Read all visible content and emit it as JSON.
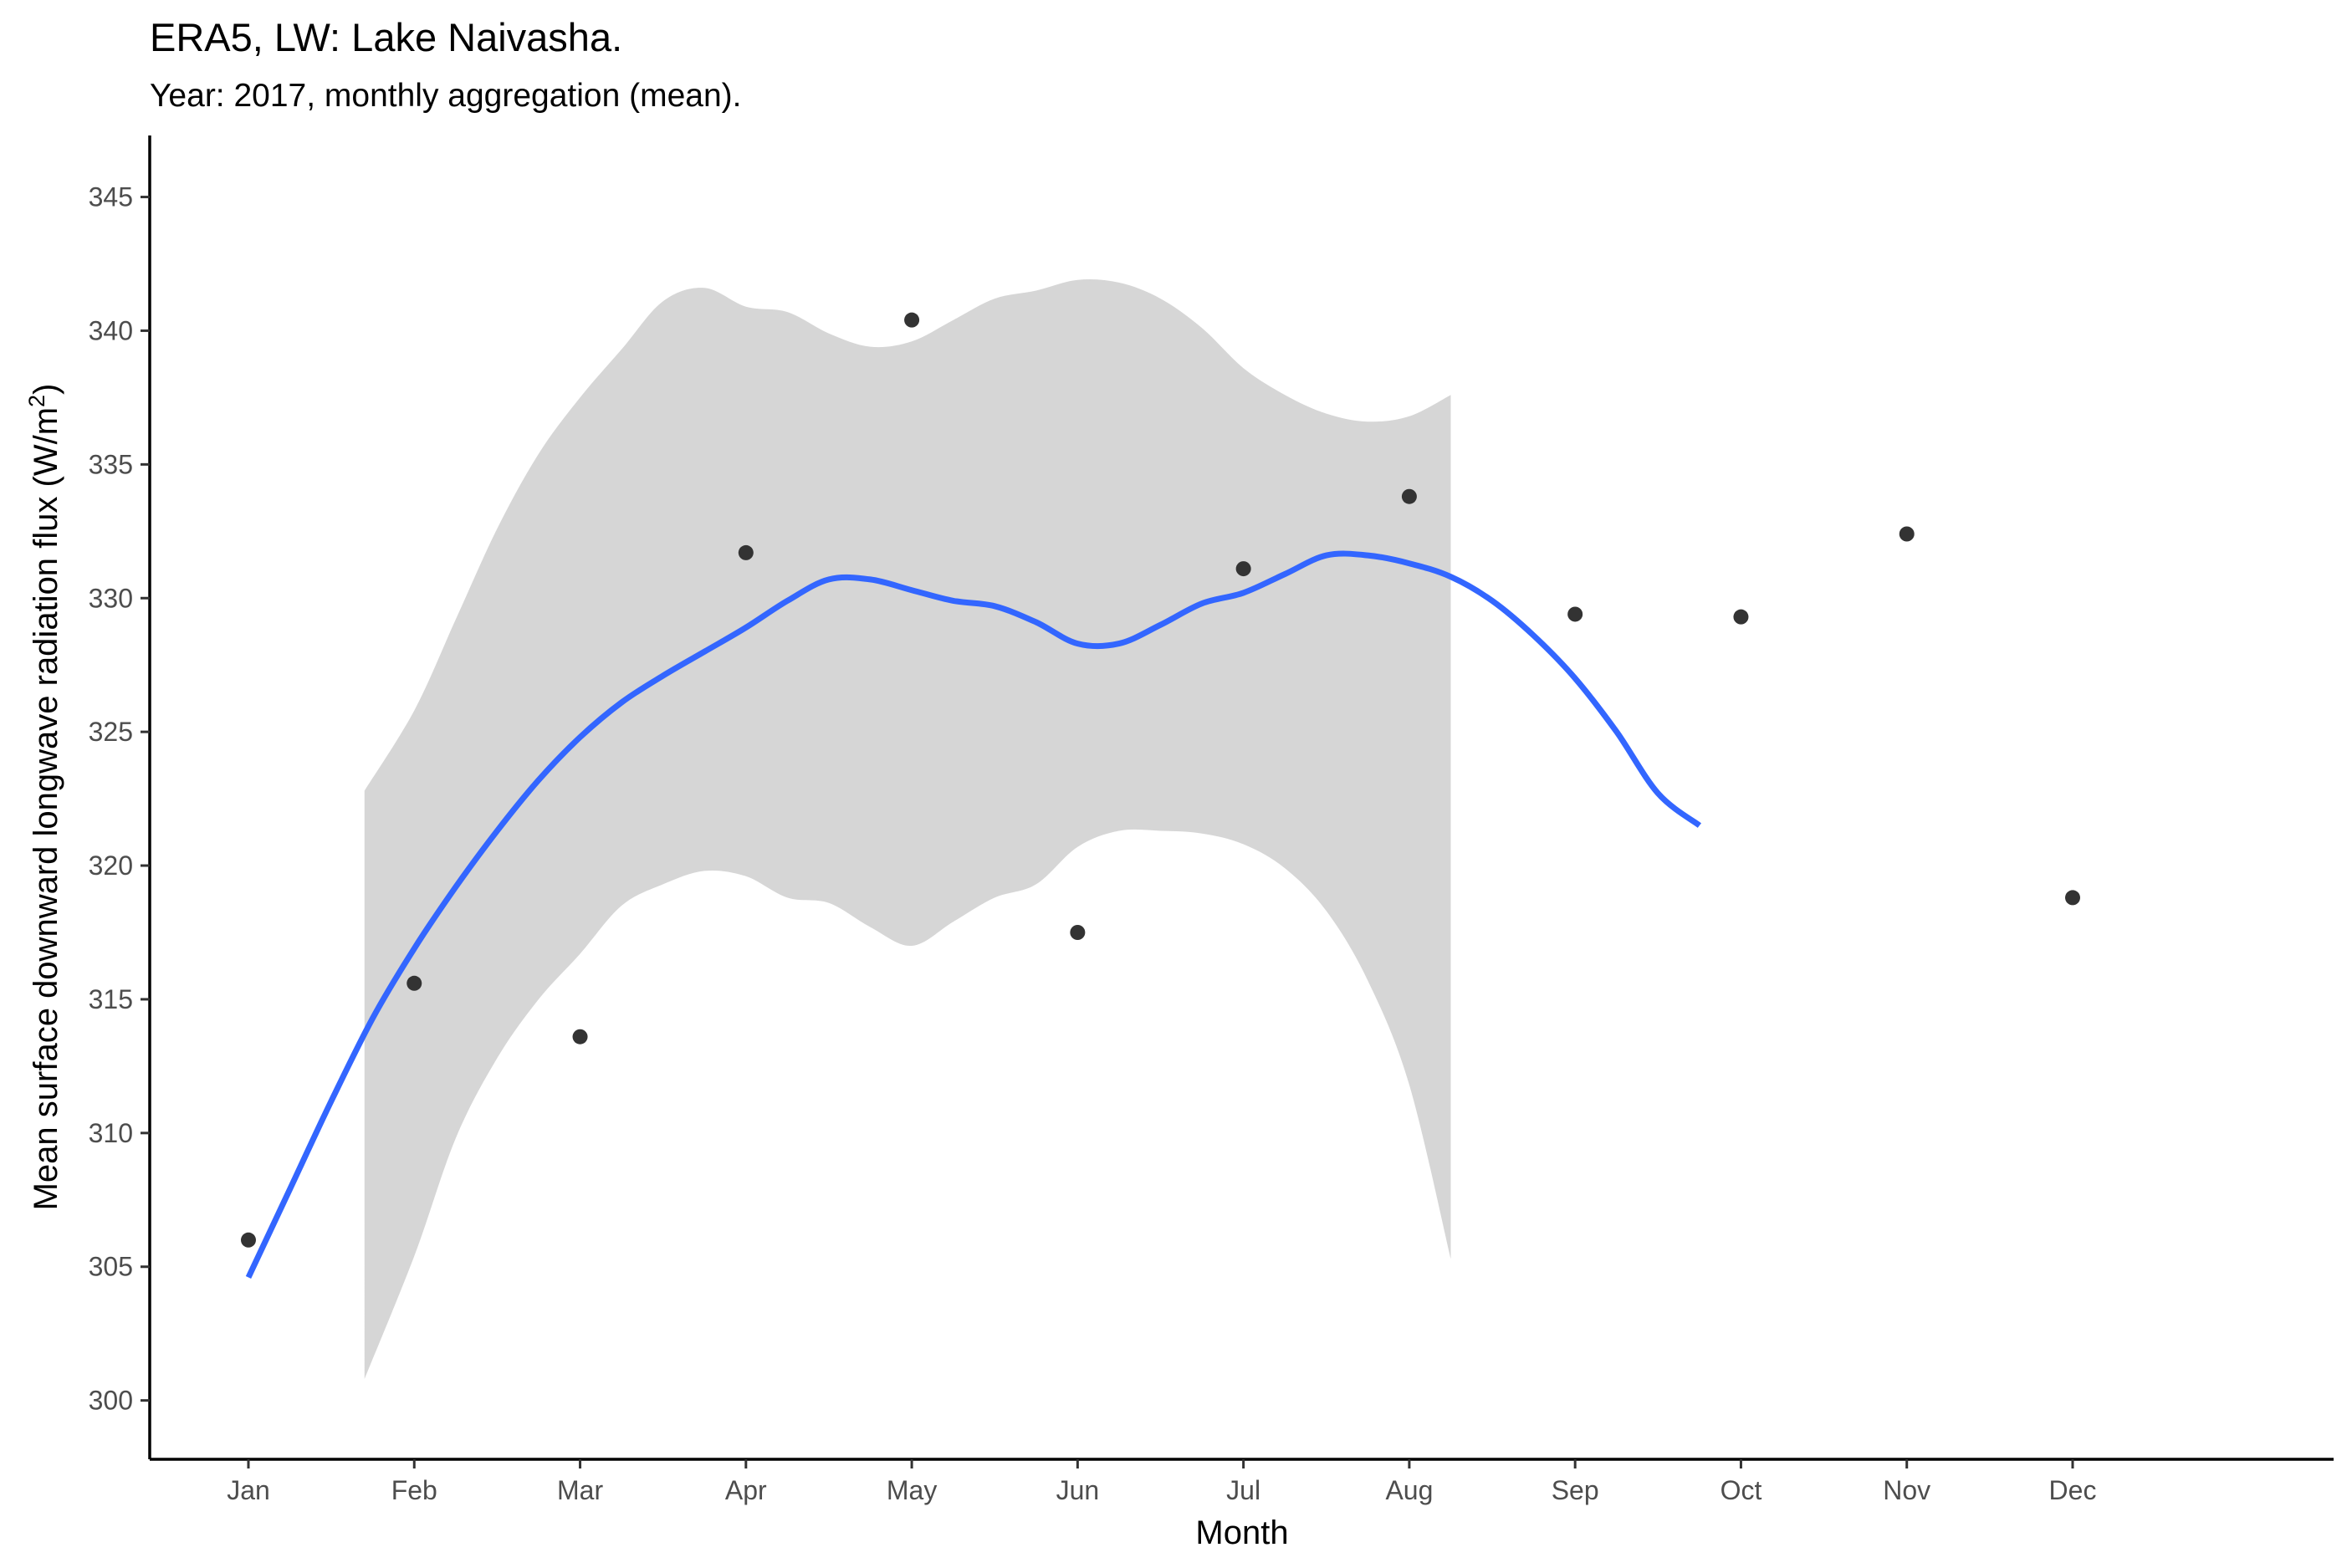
{
  "chart_data": {
    "type": "scatter",
    "title": "ERA5, LW: Lake Naivasha.",
    "subtitle": "Year: 2017, monthly aggregation (mean).",
    "xlabel": "Month",
    "ylabel_prefix": "Mean surface downward longwave radiation flux (W/m",
    "ylabel_superscript": "2",
    "ylabel_suffix": ")",
    "categories": [
      "Jan",
      "Feb",
      "Mar",
      "Apr",
      "May",
      "Jun",
      "Jul",
      "Aug",
      "Sep",
      "Oct",
      "Nov",
      "Dec"
    ],
    "ylim": [
      297.8,
      347.3
    ],
    "yticks": [
      300,
      305,
      310,
      315,
      320,
      325,
      330,
      335,
      340,
      345
    ],
    "grid": false,
    "points": {
      "color": "#333333",
      "values": [
        306.0,
        315.6,
        313.6,
        331.7,
        340.4,
        317.5,
        331.1,
        333.8,
        329.4,
        329.3,
        332.4,
        318.8
      ]
    },
    "smooth": {
      "color": "#3366ff",
      "band_color": "#d6d6d6",
      "line": [
        [
          1.0,
          304.6
        ],
        [
          1.25,
          307.9
        ],
        [
          1.5,
          311.2
        ],
        [
          1.75,
          314.3
        ],
        [
          2.0,
          316.9
        ],
        [
          2.25,
          319.2
        ],
        [
          2.5,
          321.3
        ],
        [
          2.75,
          323.2
        ],
        [
          3.0,
          324.8
        ],
        [
          3.25,
          326.1
        ],
        [
          3.5,
          327.1
        ],
        [
          3.75,
          328.0
        ],
        [
          4.0,
          328.9
        ],
        [
          4.25,
          329.9
        ],
        [
          4.5,
          330.7
        ],
        [
          4.75,
          330.7
        ],
        [
          5.0,
          330.3
        ],
        [
          5.25,
          329.9
        ],
        [
          5.5,
          329.7
        ],
        [
          5.75,
          329.1
        ],
        [
          6.0,
          328.3
        ],
        [
          6.25,
          328.3
        ],
        [
          6.5,
          329.0
        ],
        [
          6.75,
          329.8
        ],
        [
          7.0,
          330.2
        ],
        [
          7.25,
          330.9
        ],
        [
          7.5,
          331.6
        ],
        [
          7.75,
          331.6
        ],
        [
          8.0,
          331.3
        ],
        [
          8.25,
          330.8
        ],
        [
          8.5,
          329.9
        ],
        [
          8.75,
          328.6
        ],
        [
          9.0,
          327.0
        ],
        [
          9.25,
          325.0
        ],
        [
          9.5,
          322.7
        ],
        [
          9.75,
          321.5
        ]
      ],
      "band_upper": [
        [
          1.7,
          322.8
        ],
        [
          2.0,
          325.8
        ],
        [
          2.25,
          329.2
        ],
        [
          2.5,
          332.6
        ],
        [
          2.75,
          335.4
        ],
        [
          3.0,
          337.5
        ],
        [
          3.25,
          339.3
        ],
        [
          3.5,
          341.1
        ],
        [
          3.75,
          341.6
        ],
        [
          4.0,
          340.9
        ],
        [
          4.25,
          340.7
        ],
        [
          4.5,
          339.9
        ],
        [
          4.75,
          339.4
        ],
        [
          5.0,
          339.6
        ],
        [
          5.25,
          340.4
        ],
        [
          5.5,
          341.2
        ],
        [
          5.75,
          341.5
        ],
        [
          6.0,
          341.9
        ],
        [
          6.25,
          341.8
        ],
        [
          6.5,
          341.2
        ],
        [
          6.75,
          340.1
        ],
        [
          7.0,
          338.6
        ],
        [
          7.25,
          337.6
        ],
        [
          7.5,
          336.9
        ],
        [
          7.75,
          336.6
        ],
        [
          8.0,
          336.8
        ],
        [
          8.25,
          337.6
        ]
      ],
      "band_lower": [
        [
          1.7,
          300.8
        ],
        [
          2.0,
          305.4
        ],
        [
          2.25,
          309.8
        ],
        [
          2.5,
          312.8
        ],
        [
          2.75,
          315.0
        ],
        [
          3.0,
          316.7
        ],
        [
          3.25,
          318.5
        ],
        [
          3.5,
          319.3
        ],
        [
          3.75,
          319.8
        ],
        [
          4.0,
          319.6
        ],
        [
          4.25,
          318.8
        ],
        [
          4.5,
          318.6
        ],
        [
          4.75,
          317.7
        ],
        [
          5.0,
          317.0
        ],
        [
          5.25,
          317.9
        ],
        [
          5.5,
          318.8
        ],
        [
          5.75,
          319.3
        ],
        [
          6.0,
          320.7
        ],
        [
          6.25,
          321.3
        ],
        [
          6.5,
          321.3
        ],
        [
          6.75,
          321.2
        ],
        [
          7.0,
          320.8
        ],
        [
          7.25,
          319.9
        ],
        [
          7.5,
          318.3
        ],
        [
          7.75,
          315.7
        ],
        [
          8.0,
          311.8
        ],
        [
          8.25,
          305.3
        ]
      ]
    }
  }
}
